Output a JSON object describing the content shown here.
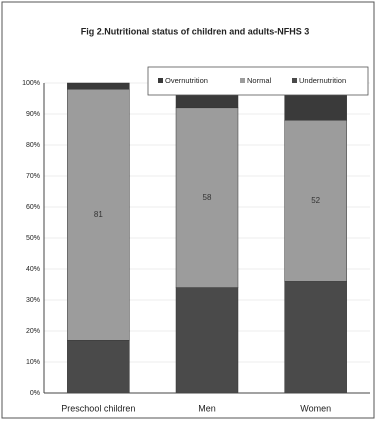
{
  "chart_data": {
    "type": "stacked_bar",
    "title": "Fig 2.Nutritional status of children and adults-NFHS 3",
    "categories": [
      "Preschool children",
      "Men",
      "Women"
    ],
    "series": [
      {
        "name": "Undernutrition",
        "color": "#4a4a4a",
        "values": [
          17,
          34,
          36
        ],
        "show_labels": false
      },
      {
        "name": "Normal",
        "color": "#9c9c9c",
        "values": [
          81,
          58,
          52
        ],
        "show_labels": true
      },
      {
        "name": "Overnutrition",
        "color": "#3a3a3a",
        "values": [
          2,
          8,
          12
        ],
        "show_labels": false
      }
    ],
    "legend_order": [
      2,
      1,
      0
    ],
    "ylim": [
      0,
      100
    ],
    "yticks": [
      {
        "value": 0,
        "label": "0%"
      },
      {
        "value": 10,
        "label": "10%"
      },
      {
        "value": 20,
        "label": "20%"
      },
      {
        "value": 30,
        "label": "30%"
      },
      {
        "value": 40,
        "label": "40%"
      },
      {
        "value": 50,
        "label": "50%"
      },
      {
        "value": 60,
        "label": "60%"
      },
      {
        "value": 70,
        "label": "70%"
      },
      {
        "value": 80,
        "label": "80%"
      },
      {
        "value": 90,
        "label": "90%"
      },
      {
        "value": 100,
        "label": "100%"
      }
    ],
    "grid": true
  }
}
